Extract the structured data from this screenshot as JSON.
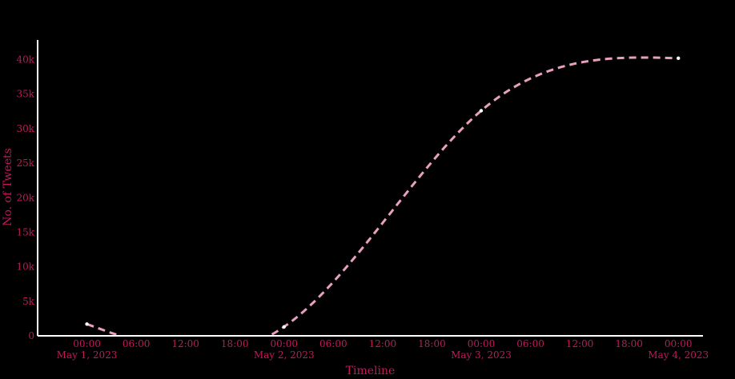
{
  "colors": {
    "background": "#000000",
    "axis": "#ffffff",
    "text": "#c2185b",
    "line": "#e8a0bf",
    "marker": "#ffffff"
  },
  "chart_data": {
    "type": "line",
    "xlabel": "Timeline",
    "ylabel": "No. of Tweets",
    "ylim": [
      0,
      44000
    ],
    "xlim_hours": [
      -6,
      75
    ],
    "line_style": "dashed",
    "spline": true,
    "grid": false,
    "series": [
      {
        "x": [
          "2023-05-01 00:00",
          "2023-05-02 00:00",
          "2023-05-03 00:00",
          "2023-05-04 00:00"
        ],
        "y": [
          1700,
          1300,
          32600,
          40200
        ]
      }
    ],
    "x_ticks": [
      {
        "hour": 0,
        "label": "00:00",
        "date": "May 1, 2023"
      },
      {
        "hour": 6,
        "label": "06:00",
        "date": ""
      },
      {
        "hour": 12,
        "label": "12:00",
        "date": ""
      },
      {
        "hour": 18,
        "label": "18:00",
        "date": ""
      },
      {
        "hour": 24,
        "label": "00:00",
        "date": "May 2, 2023"
      },
      {
        "hour": 30,
        "label": "06:00",
        "date": ""
      },
      {
        "hour": 36,
        "label": "12:00",
        "date": ""
      },
      {
        "hour": 42,
        "label": "18:00",
        "date": ""
      },
      {
        "hour": 48,
        "label": "00:00",
        "date": "May 3, 2023"
      },
      {
        "hour": 54,
        "label": "06:00",
        "date": ""
      },
      {
        "hour": 60,
        "label": "12:00",
        "date": ""
      },
      {
        "hour": 66,
        "label": "18:00",
        "date": ""
      },
      {
        "hour": 72,
        "label": "00:00",
        "date": "May 4, 2023"
      }
    ],
    "y_ticks": [
      {
        "value": 0,
        "label": "0"
      },
      {
        "value": 5000,
        "label": "5k"
      },
      {
        "value": 10000,
        "label": "10k"
      },
      {
        "value": 15000,
        "label": "15k"
      },
      {
        "value": 20000,
        "label": "20k"
      },
      {
        "value": 25000,
        "label": "25k"
      },
      {
        "value": 30000,
        "label": "30k"
      },
      {
        "value": 35000,
        "label": "35k"
      },
      {
        "value": 40000,
        "label": "40k"
      }
    ]
  }
}
